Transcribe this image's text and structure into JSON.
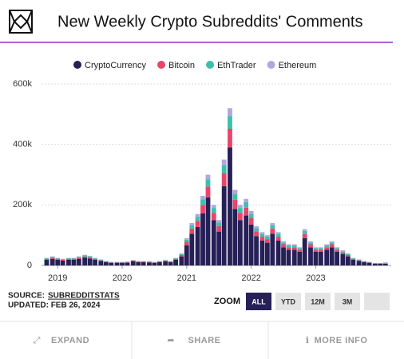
{
  "chart_data": {
    "type": "bar",
    "stacked": true,
    "title": "New Weekly Crypto Subreddits' Comments",
    "x": [
      2018.83,
      2018.92,
      2019,
      2019.08,
      2019.17,
      2019.25,
      2019.33,
      2019.42,
      2019.5,
      2019.58,
      2019.67,
      2019.75,
      2019.83,
      2019.92,
      2020,
      2020.08,
      2020.17,
      2020.25,
      2020.33,
      2020.42,
      2020.5,
      2020.58,
      2020.67,
      2020.75,
      2020.83,
      2020.92,
      2021,
      2021.08,
      2021.17,
      2021.25,
      2021.33,
      2021.42,
      2021.5,
      2021.58,
      2021.67,
      2021.75,
      2021.83,
      2021.92,
      2022,
      2022.08,
      2022.17,
      2022.25,
      2022.33,
      2022.42,
      2022.5,
      2022.58,
      2022.67,
      2022.75,
      2022.83,
      2022.92,
      2023,
      2023.08,
      2023.17,
      2023.25,
      2023.33,
      2023.42,
      2023.5,
      2023.58,
      2023.67,
      2023.75,
      2023.83,
      2023.92,
      2024,
      2024.08
    ],
    "series": [
      {
        "name": "CryptoCurrency",
        "color": "#262057",
        "values": [
          19000,
          22000,
          19000,
          16000,
          19000,
          19000,
          22000,
          26000,
          23000,
          19000,
          15000,
          11000,
          9000,
          9000,
          9000,
          9000,
          14000,
          11000,
          11000,
          10000,
          9000,
          11000,
          14000,
          11000,
          19000,
          30000,
          67000,
          105000,
          127000,
          172000,
          225000,
          150000,
          112000,
          262000,
          390000,
          187000,
          150000,
          165000,
          135000,
          97000,
          82000,
          75000,
          105000,
          82000,
          60000,
          52000,
          52000,
          45000,
          90000,
          60000,
          45000,
          45000,
          52000,
          60000,
          45000,
          37000,
          30000,
          19000,
          15000,
          11000,
          9000,
          6000,
          6000,
          6000
        ]
      },
      {
        "name": "Bitcoin",
        "color": "#e8456b",
        "values": [
          3000,
          4000,
          3000,
          3000,
          3000,
          3000,
          4000,
          4000,
          4000,
          3000,
          2000,
          2000,
          1000,
          1000,
          1000,
          2000,
          2000,
          2000,
          2000,
          2000,
          1000,
          2000,
          2000,
          2000,
          3000,
          5000,
          11000,
          17000,
          20000,
          28000,
          36000,
          24000,
          18000,
          42000,
          62000,
          30000,
          24000,
          26000,
          22000,
          16000,
          13000,
          12000,
          17000,
          13000,
          10000,
          8000,
          8000,
          7000,
          14000,
          10000,
          7000,
          7000,
          8000,
          10000,
          7000,
          6000,
          5000,
          3000,
          2000,
          2000,
          1000,
          1000,
          1000,
          1000
        ]
      },
      {
        "name": "EthTrader",
        "color": "#3dbfad",
        "values": [
          2000,
          2000,
          2000,
          2000,
          2000,
          2000,
          2000,
          3000,
          3000,
          2000,
          2000,
          1000,
          1000,
          1000,
          1000,
          1000,
          1000,
          1000,
          1000,
          1000,
          1000,
          1000,
          1000,
          1000,
          2000,
          3000,
          7000,
          11000,
          14000,
          18000,
          24000,
          16000,
          12000,
          28000,
          42000,
          20000,
          16000,
          18000,
          14000,
          10000,
          9000,
          8000,
          11000,
          9000,
          6000,
          6000,
          6000,
          5000,
          10000,
          6000,
          5000,
          5000,
          6000,
          6000,
          5000,
          4000,
          3000,
          2000,
          2000,
          1000,
          1000,
          1000,
          1000,
          2000
        ]
      },
      {
        "name": "Ethereum",
        "color": "#b3a6e0",
        "values": [
          1000,
          2000,
          1000,
          1000,
          1000,
          1000,
          2000,
          2000,
          2000,
          1000,
          1000,
          1000,
          1000,
          1000,
          1000,
          1000,
          1000,
          1000,
          1000,
          1000,
          1000,
          1000,
          1000,
          1000,
          1000,
          2000,
          5000,
          7000,
          9000,
          12000,
          15000,
          10000,
          8000,
          18000,
          26000,
          13000,
          10000,
          11000,
          9000,
          7000,
          6000,
          5000,
          7000,
          6000,
          4000,
          4000,
          4000,
          3000,
          6000,
          4000,
          3000,
          3000,
          4000,
          4000,
          3000,
          3000,
          2000,
          1000,
          1000,
          1000,
          1000,
          0,
          0,
          1000
        ]
      }
    ],
    "xlim": [
      2018.75,
      2024.17
    ],
    "xticks": [
      2019,
      2020,
      2021,
      2022,
      2023
    ],
    "ylim": [
      0,
      600000
    ],
    "yticks": [
      0,
      {
        "value": 200000,
        "label": "200k"
      },
      {
        "value": 400000,
        "label": "400k"
      },
      {
        "value": 600000,
        "label": "600k"
      }
    ],
    "grid": true,
    "legend": "top"
  },
  "page": {
    "source_label": "SOURCE:",
    "source": "SUBREDDITSTATS",
    "updated": "UPDATED: FEB 26, 2024",
    "zoom": "ZOOM",
    "zoom_buttons": [
      "ALL",
      "YTD",
      "12M",
      "3M"
    ],
    "actions": [
      "EXPAND",
      "SHARE",
      "MORE INFO"
    ]
  }
}
